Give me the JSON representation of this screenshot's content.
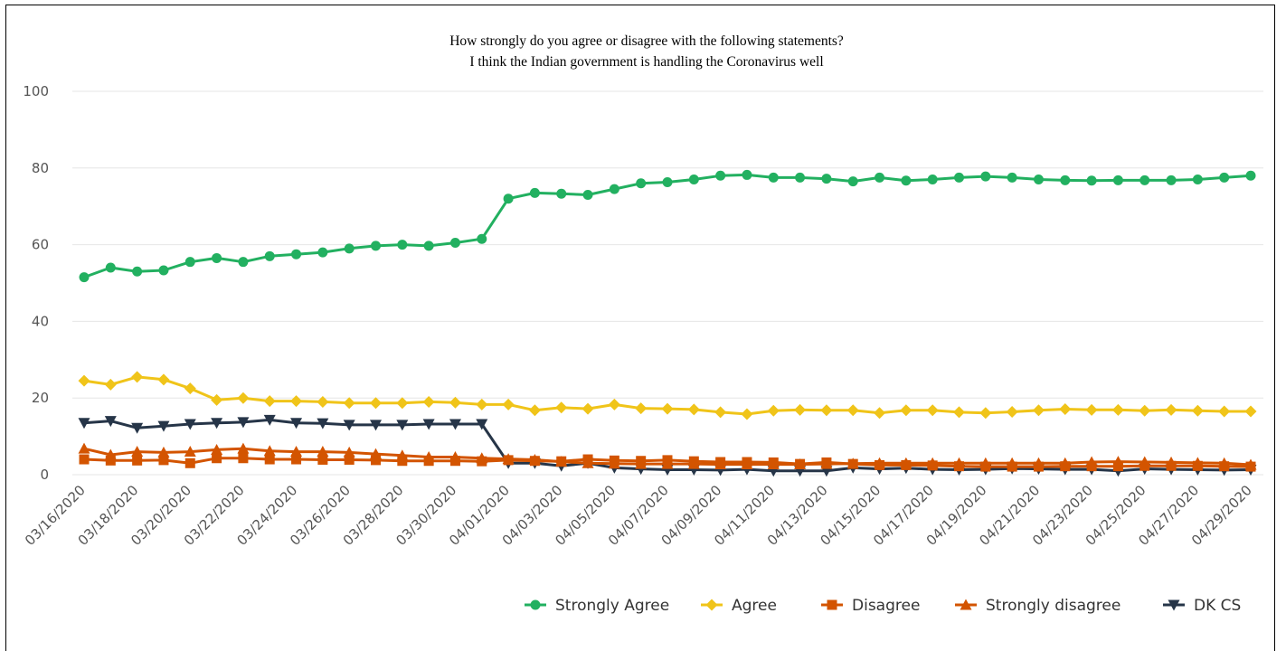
{
  "chart_data": {
    "type": "line",
    "title": "How strongly do you agree or disagree with the following statements?",
    "subtitle": "I think the Indian government is handling the Coronavirus well",
    "xlabel": "",
    "ylabel": "",
    "ylim": [
      0,
      100
    ],
    "yticks": [
      0,
      20,
      40,
      60,
      80,
      100
    ],
    "grid": true,
    "legend_position": "bottom-right",
    "x": [
      "03/16/2020",
      "03/17/2020",
      "03/18/2020",
      "03/19/2020",
      "03/20/2020",
      "03/21/2020",
      "03/22/2020",
      "03/23/2020",
      "03/24/2020",
      "03/25/2020",
      "03/26/2020",
      "03/27/2020",
      "03/28/2020",
      "03/29/2020",
      "03/30/2020",
      "03/31/2020",
      "04/01/2020",
      "04/02/2020",
      "04/03/2020",
      "04/04/2020",
      "04/05/2020",
      "04/06/2020",
      "04/07/2020",
      "04/08/2020",
      "04/09/2020",
      "04/10/2020",
      "04/11/2020",
      "04/12/2020",
      "04/13/2020",
      "04/14/2020",
      "04/15/2020",
      "04/16/2020",
      "04/17/2020",
      "04/18/2020",
      "04/19/2020",
      "04/20/2020",
      "04/21/2020",
      "04/22/2020",
      "04/23/2020",
      "04/24/2020",
      "04/25/2020",
      "04/26/2020",
      "04/27/2020",
      "04/28/2020",
      "04/29/2020"
    ],
    "xtick_labels": [
      "03/16/2020",
      "03/18/2020",
      "03/20/2020",
      "03/22/2020",
      "03/24/2020",
      "03/26/2020",
      "03/28/2020",
      "03/30/2020",
      "04/01/2020",
      "04/03/2020",
      "04/05/2020",
      "04/07/2020",
      "04/09/2020",
      "04/11/2020",
      "04/13/2020",
      "04/15/2020",
      "04/17/2020",
      "04/19/2020",
      "04/21/2020",
      "04/23/2020",
      "04/25/2020",
      "04/27/2020",
      "04/29/2020"
    ],
    "series": [
      {
        "name": "Strongly Agree",
        "color": "#22b060",
        "marker": "circle",
        "values": [
          51.5,
          54,
          53,
          53.3,
          55.5,
          56.5,
          55.5,
          57,
          57.5,
          58,
          59,
          59.7,
          60,
          59.7,
          60.5,
          61.5,
          72,
          73.5,
          73.3,
          73,
          74.5,
          76,
          76.3,
          77,
          78,
          78.2,
          77.5,
          77.5,
          77.2,
          76.5,
          77.5,
          76.7,
          77,
          77.5,
          77.8,
          77.5,
          77,
          76.8,
          76.7,
          76.8,
          76.8,
          76.8,
          77,
          77.5,
          78
        ]
      },
      {
        "name": "Agree",
        "color": "#f0c419",
        "marker": "diamond",
        "values": [
          24.5,
          23.5,
          25.5,
          24.8,
          22.5,
          19.5,
          20,
          19.2,
          19.2,
          19,
          18.7,
          18.7,
          18.7,
          19,
          18.8,
          18.3,
          18.3,
          16.8,
          17.5,
          17.2,
          18.3,
          17.3,
          17.2,
          17,
          16.3,
          15.8,
          16.7,
          16.9,
          16.8,
          16.8,
          16.1,
          16.8,
          16.8,
          16.3,
          16.1,
          16.4,
          16.8,
          17.1,
          16.9,
          16.9,
          16.7,
          16.9,
          16.7,
          16.5,
          16.5
        ]
      },
      {
        "name": "Disagree",
        "color": "#d35400",
        "marker": "square",
        "values": [
          4,
          3.7,
          3.7,
          3.8,
          3,
          4.3,
          4.3,
          4,
          4,
          3.9,
          3.9,
          3.8,
          3.6,
          3.6,
          3.6,
          3.5,
          3.8,
          3.6,
          3.5,
          4,
          3.7,
          3.6,
          3.8,
          3.5,
          3.3,
          3.3,
          3.2,
          2.8,
          3.2,
          2.8,
          2.5,
          2.5,
          2.4,
          2.2,
          2.1,
          2.1,
          2.1,
          2.2,
          2.2,
          2.2,
          2.3,
          2.3,
          2.3,
          2.2,
          2.1
        ]
      },
      {
        "name": "Strongly disagree",
        "color": "#d35400",
        "marker": "triangle-up",
        "values": [
          6.8,
          5.2,
          6,
          5.8,
          6,
          6.5,
          6.8,
          6.2,
          6,
          6,
          5.8,
          5.4,
          5,
          4.6,
          4.6,
          4.3,
          4.1,
          3.9,
          3.4,
          3,
          2.9,
          2.8,
          2.8,
          2.8,
          2.7,
          2.7,
          2.7,
          2.7,
          2.8,
          2.9,
          3,
          3,
          3,
          3,
          3,
          3,
          3,
          3,
          3.3,
          3.4,
          3.3,
          3.2,
          3.1,
          3,
          2.6
        ]
      },
      {
        "name": "DK CS",
        "color": "#263548",
        "marker": "triangle-down",
        "values": [
          13.5,
          14,
          12.2,
          12.7,
          13.2,
          13.5,
          13.7,
          14.3,
          13.5,
          13.4,
          13,
          13,
          13,
          13.2,
          13.2,
          13.2,
          3,
          3,
          2.3,
          3,
          1.8,
          1.5,
          1.3,
          1.3,
          1.2,
          1.4,
          1,
          1,
          1,
          1.8,
          1.5,
          1.7,
          1.4,
          1.3,
          1.4,
          1.6,
          1.5,
          1.4,
          1.4,
          1,
          1.5,
          1.4,
          1.3,
          1.2,
          1.3
        ]
      }
    ]
  }
}
